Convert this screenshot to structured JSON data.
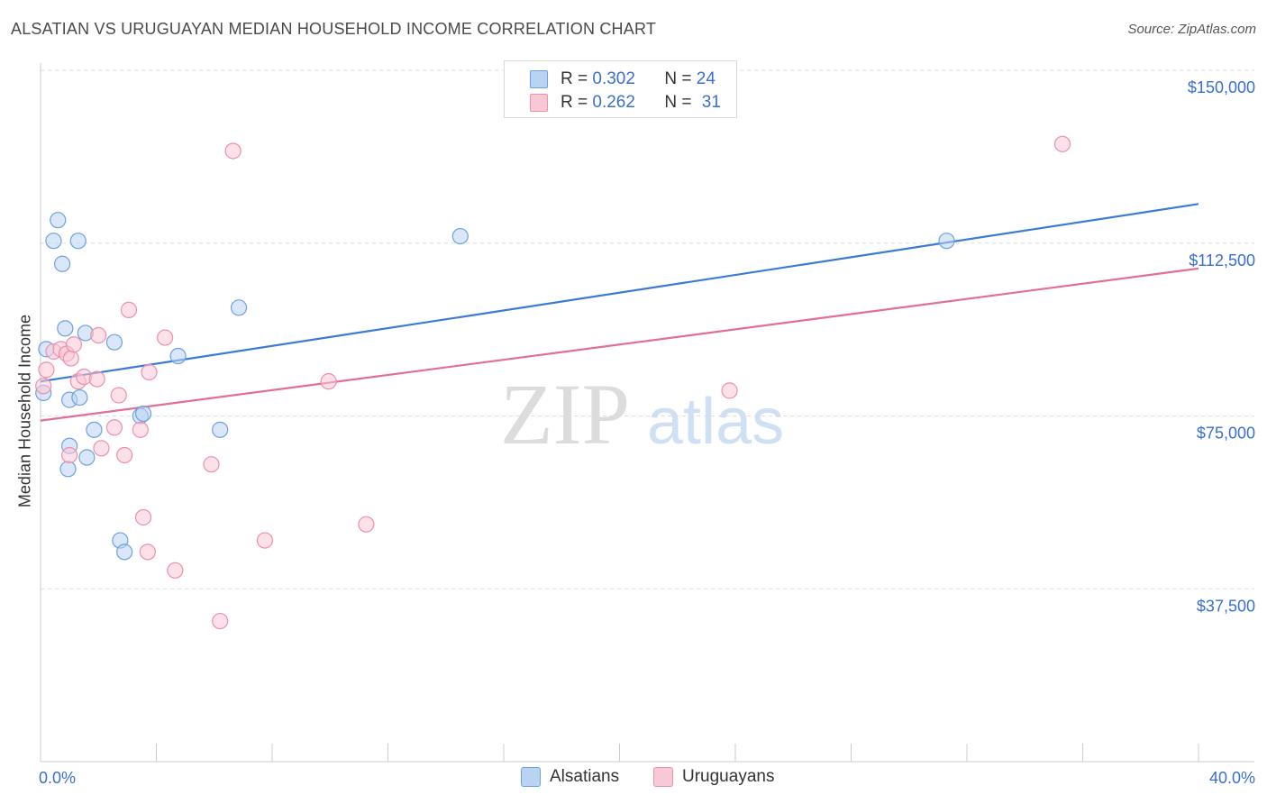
{
  "title": "ALSATIAN VS URUGUAYAN MEDIAN HOUSEHOLD INCOME CORRELATION CHART",
  "source": "Source: ZipAtlas.com",
  "watermark": {
    "zip": "ZIP",
    "atlas": "atlas"
  },
  "legend_top": {
    "rows": [
      {
        "r_label": "R =",
        "r_value": "0.302",
        "n_label": "N =",
        "n_value": "24"
      },
      {
        "r_label": "R =",
        "r_value": "0.262",
        "n_label": "N =",
        "n_value": "31"
      }
    ]
  },
  "colors": {
    "alsatians_fill": "#b9d3f3",
    "alsatians_stroke": "#6fa0e0",
    "alsatians_line": "#3b7bd4",
    "uruguayans_fill": "#f9c8d6",
    "uruguayans_stroke": "#ee8fac",
    "uruguayans_line": "#e06f98",
    "axis_text": "#3a6fcf",
    "grid": "#dddddd"
  },
  "chart_data": {
    "type": "scatter",
    "title": "ALSATIAN VS URUGUAYAN MEDIAN HOUSEHOLD INCOME CORRELATION CHART",
    "xlabel": "",
    "ylabel": "Median Household Income",
    "xlim": [
      0,
      40
    ],
    "ylim": [
      0,
      155000
    ],
    "x_tick_labels": [
      "0.0%",
      "40.0%"
    ],
    "y_ticks": [
      37500,
      75000,
      112500,
      150000
    ],
    "y_tick_labels": [
      "$37,500",
      "$75,000",
      "$112,500",
      "$150,000"
    ],
    "grid": true,
    "legend_position": "top-center",
    "series": [
      {
        "name": "Alsatians",
        "r": 0.302,
        "n": 24,
        "trend": [
          [
            0,
            82500
          ],
          [
            40,
            121000
          ]
        ],
        "points": [
          [
            0.1,
            80000
          ],
          [
            0.2,
            89500
          ],
          [
            0.45,
            113000
          ],
          [
            0.6,
            117500
          ],
          [
            0.75,
            108000
          ],
          [
            0.85,
            94000
          ],
          [
            0.95,
            63500
          ],
          [
            1.0,
            68500
          ],
          [
            1.0,
            78500
          ],
          [
            1.3,
            113000
          ],
          [
            1.35,
            79000
          ],
          [
            1.55,
            93000
          ],
          [
            1.6,
            66000
          ],
          [
            1.85,
            72000
          ],
          [
            2.55,
            91000
          ],
          [
            2.75,
            48000
          ],
          [
            2.9,
            45500
          ],
          [
            3.45,
            75000
          ],
          [
            3.55,
            75500
          ],
          [
            4.75,
            88000
          ],
          [
            6.2,
            72000
          ],
          [
            6.85,
            98500
          ],
          [
            14.5,
            114000
          ],
          [
            31.3,
            113000
          ]
        ]
      },
      {
        "name": "Uruguayans",
        "r": 0.262,
        "n": 31,
        "trend": [
          [
            0,
            74000
          ],
          [
            40,
            107000
          ]
        ],
        "points": [
          [
            0.1,
            81500
          ],
          [
            0.2,
            85000
          ],
          [
            0.45,
            89000
          ],
          [
            0.7,
            89500
          ],
          [
            0.9,
            88500
          ],
          [
            1.0,
            66500
          ],
          [
            1.05,
            87500
          ],
          [
            1.15,
            90500
          ],
          [
            1.3,
            82500
          ],
          [
            1.5,
            83500
          ],
          [
            1.95,
            83000
          ],
          [
            2.0,
            92500
          ],
          [
            2.1,
            68000
          ],
          [
            2.55,
            72500
          ],
          [
            2.7,
            79500
          ],
          [
            2.9,
            66500
          ],
          [
            3.05,
            98000
          ],
          [
            3.45,
            72000
          ],
          [
            3.55,
            53000
          ],
          [
            3.7,
            45500
          ],
          [
            3.75,
            84500
          ],
          [
            4.3,
            92000
          ],
          [
            4.65,
            41500
          ],
          [
            5.9,
            64500
          ],
          [
            6.2,
            30500
          ],
          [
            6.65,
            132500
          ],
          [
            7.75,
            48000
          ],
          [
            9.95,
            82500
          ],
          [
            11.25,
            51500
          ],
          [
            23.8,
            80500
          ],
          [
            35.3,
            134000
          ]
        ]
      }
    ]
  },
  "bottom_legend": {
    "alsatians": "Alsatians",
    "uruguayans": "Uruguayans"
  }
}
